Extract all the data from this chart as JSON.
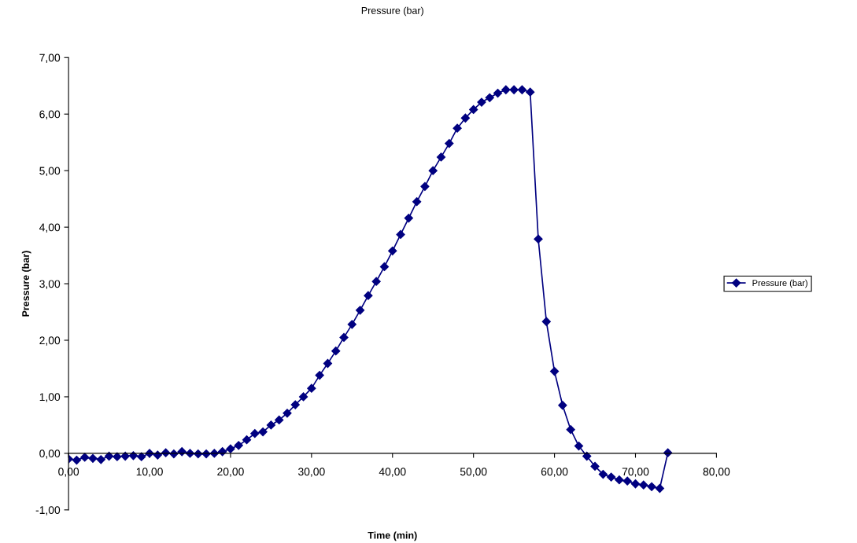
{
  "chart_data": {
    "type": "line",
    "title": "Pressure (bar)",
    "xlabel": "Time (min)",
    "ylabel": "Pressure (bar)",
    "x": [
      0,
      1,
      2,
      3,
      4,
      5,
      6,
      7,
      8,
      9,
      10,
      11,
      12,
      13,
      14,
      15,
      16,
      17,
      18,
      19,
      20,
      21,
      22,
      23,
      24,
      25,
      26,
      27,
      28,
      29,
      30,
      31,
      32,
      33,
      34,
      35,
      36,
      37,
      38,
      39,
      40,
      41,
      42,
      43,
      44,
      45,
      46,
      47,
      48,
      49,
      50,
      51,
      52,
      53,
      54,
      55,
      56,
      57,
      58,
      59,
      60,
      61,
      62,
      63,
      64,
      65,
      66,
      67,
      68,
      69,
      70,
      71,
      72,
      73,
      74
    ],
    "series": [
      {
        "name": "Pressure (bar)",
        "color": "#000080",
        "values": [
          -0.1,
          -0.12,
          -0.07,
          -0.09,
          -0.11,
          -0.05,
          -0.06,
          -0.05,
          -0.04,
          -0.06,
          0.0,
          -0.03,
          0.01,
          -0.01,
          0.03,
          0.0,
          -0.01,
          -0.01,
          0.0,
          0.03,
          0.08,
          0.14,
          0.24,
          0.35,
          0.38,
          0.5,
          0.59,
          0.71,
          0.86,
          1.0,
          1.15,
          1.38,
          1.59,
          1.81,
          2.05,
          2.28,
          2.53,
          2.79,
          3.04,
          3.3,
          3.58,
          3.87,
          4.16,
          4.45,
          4.72,
          5.0,
          5.24,
          5.48,
          5.75,
          5.93,
          6.08,
          6.21,
          6.29,
          6.37,
          6.43,
          6.43,
          6.43,
          6.39,
          3.79,
          2.33,
          1.45,
          0.85,
          0.42,
          0.13,
          -0.05,
          -0.23,
          -0.37,
          -0.42,
          -0.47,
          -0.49,
          -0.54,
          -0.56,
          -0.59,
          -0.62,
          0.01
        ]
      }
    ],
    "xlim": [
      0,
      80
    ],
    "ylim": [
      -1,
      7
    ],
    "xticks": [
      {
        "value": 0,
        "label": "0,00"
      },
      {
        "value": 10,
        "label": "10,00"
      },
      {
        "value": 20,
        "label": "20,00"
      },
      {
        "value": 30,
        "label": "30,00"
      },
      {
        "value": 40,
        "label": "40,00"
      },
      {
        "value": 50,
        "label": "50,00"
      },
      {
        "value": 60,
        "label": "60,00"
      },
      {
        "value": 70,
        "label": "70,00"
      },
      {
        "value": 80,
        "label": "80,00"
      }
    ],
    "yticks": [
      {
        "value": -1,
        "label": "-1,00"
      },
      {
        "value": 0,
        "label": "0,00"
      },
      {
        "value": 1,
        "label": "1,00"
      },
      {
        "value": 2,
        "label": "2,00"
      },
      {
        "value": 3,
        "label": "3,00"
      },
      {
        "value": 4,
        "label": "4,00"
      },
      {
        "value": 5,
        "label": "5,00"
      },
      {
        "value": 6,
        "label": "6,00"
      },
      {
        "value": 7,
        "label": "7,00"
      }
    ],
    "grid": false,
    "legend": "right",
    "marker": "diamond",
    "line_style": "solid"
  }
}
